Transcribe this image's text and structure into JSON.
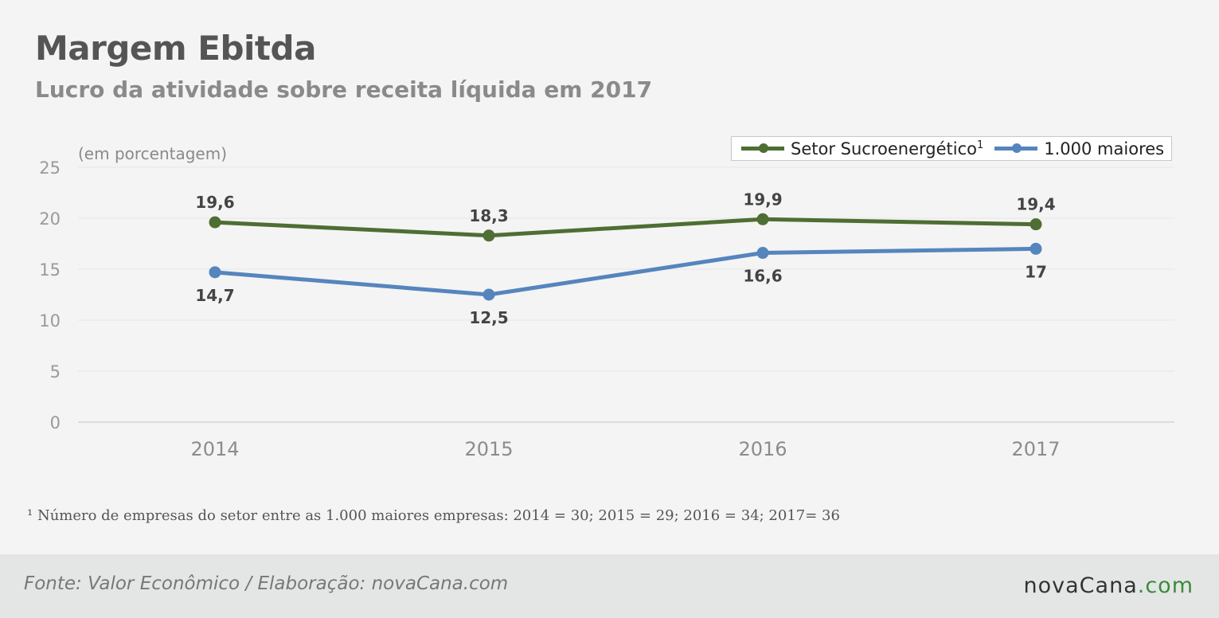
{
  "header": {
    "title": "Margem Ebitda",
    "subtitle": "Lucro da atividade sobre receita líquida em 2017"
  },
  "chart_data": {
    "type": "line",
    "unit_label": "(em porcentagem)",
    "categories": [
      "2014",
      "2015",
      "2016",
      "2017"
    ],
    "ylim": [
      0,
      25
    ],
    "yticks": [
      0,
      5,
      10,
      15,
      20,
      25
    ],
    "grid": true,
    "legend_position": "top-right",
    "series": [
      {
        "name": "Setor Sucroenergético",
        "name_sup": "1",
        "color": "#4e6e33",
        "values": [
          19.6,
          18.3,
          19.9,
          19.4
        ],
        "labels": [
          "19,6",
          "18,3",
          "19,9",
          "19,4"
        ],
        "label_position": "above"
      },
      {
        "name": "1.000 maiores",
        "name_sup": "",
        "color": "#5585bd",
        "values": [
          14.7,
          12.5,
          16.6,
          17
        ],
        "labels": [
          "14,7",
          "12,5",
          "16,6",
          "17"
        ],
        "label_position": "below"
      }
    ]
  },
  "footnote": "¹ Número de empresas do setor entre as 1.000 maiores empresas: 2014 = 30; 2015 = 29; 2016 = 34; 2017= 36",
  "footer": {
    "source": "Fonte: Valor Econômico / Elaboração: novaCana.com",
    "logo_brand": "novaCana",
    "logo_tld": ".com"
  }
}
